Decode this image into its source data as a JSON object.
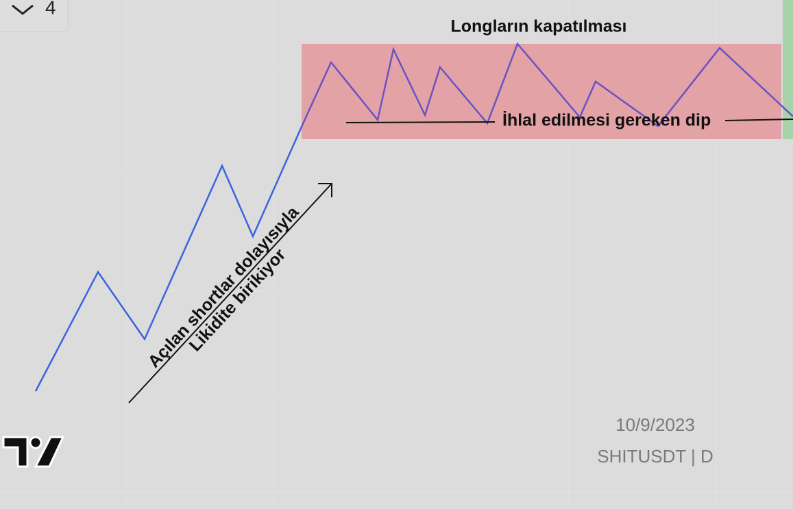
{
  "toolbar": {
    "count": "4"
  },
  "annotations": {
    "top_label": "Longların kapatılması",
    "level_label": "İhlal edilmesi gereken dip",
    "diagonal_line_1": "Açılan shortlar dolayısıyla",
    "diagonal_line_2": "Likidite birikiyor"
  },
  "watermark": {
    "date": "10/9/2023",
    "symbol": "SHITUSDT | D"
  }
}
